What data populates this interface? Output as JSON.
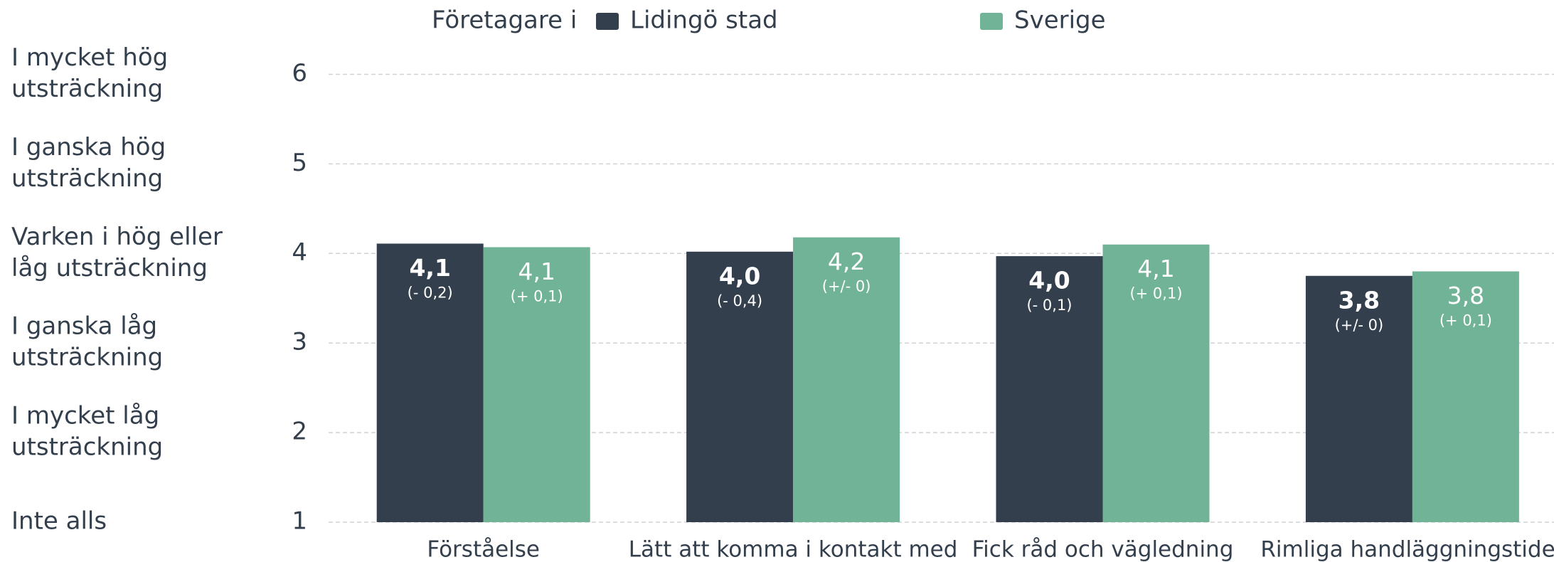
{
  "chart_data": {
    "type": "bar",
    "legend_title": "Företagare i",
    "categories": [
      "Förståelse",
      "Lätt att komma i kontakt med",
      "Fick råd och vägledning",
      "Rimliga handläggningstider"
    ],
    "series": [
      {
        "name": "Lidingö stad",
        "color": "#333f4c",
        "values": [
          4.11,
          4.02,
          3.97,
          3.75
        ],
        "value_labels": [
          "4,1",
          "4,0",
          "4,0",
          "3,8"
        ],
        "change_labels": [
          "(- 0,2)",
          "(- 0,4)",
          "(- 0,1)",
          "(+/- 0)"
        ]
      },
      {
        "name": "Sverige",
        "color": "#71b396",
        "values": [
          4.07,
          4.18,
          4.1,
          3.8
        ],
        "value_labels": [
          "4,1",
          "4,2",
          "4,1",
          "3,8"
        ],
        "change_labels": [
          "(+ 0,1)",
          "(+/- 0)",
          "(+ 0,1)",
          "(+ 0,1)"
        ]
      }
    ],
    "ylim": [
      1,
      6
    ],
    "yticks": [
      1,
      2,
      3,
      4,
      5,
      6
    ],
    "grid": true,
    "scale_labels": [
      [
        "Inte alls"
      ],
      [
        "I mycket låg",
        "utsträckning"
      ],
      [
        "I ganska låg",
        "utsträckning"
      ],
      [
        "Varken i hög eller",
        "låg utsträckning"
      ],
      [
        "I ganska hög",
        "utsträckning"
      ],
      [
        "I mycket hög",
        "utsträckning"
      ]
    ]
  }
}
